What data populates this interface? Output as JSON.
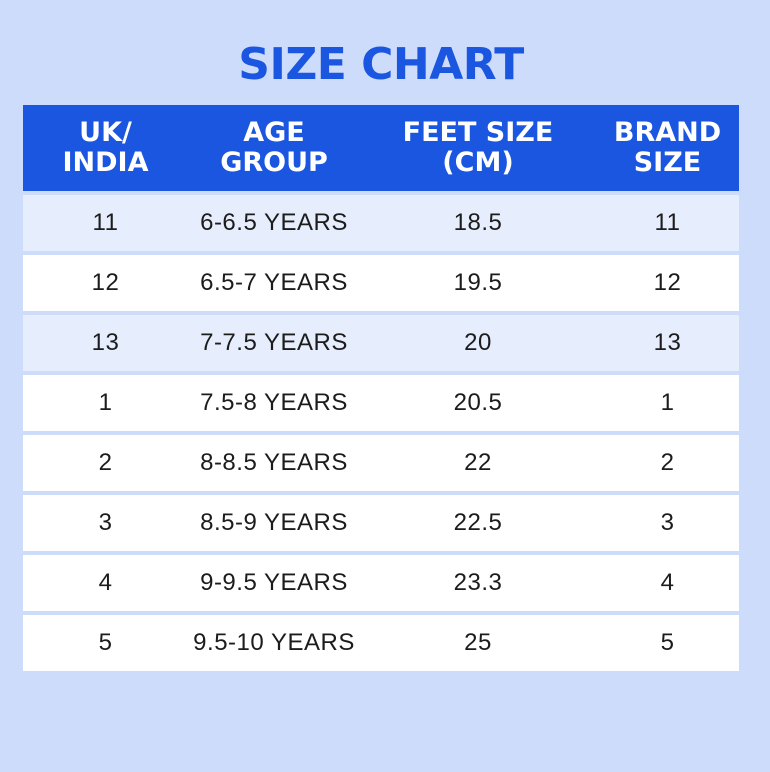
{
  "title": "SIZE CHART",
  "colors": {
    "background": "#cddcfb",
    "accent": "#1a56e0",
    "row_alt": "#e6edfd",
    "row": "#ffffff"
  },
  "table": {
    "headers": [
      "UK/\nINDIA",
      "AGE\nGROUP",
      "FEET SIZE\n(CM)",
      "BRAND\nSIZE"
    ],
    "rows": [
      [
        "11",
        "6-6.5 YEARS",
        "18.5",
        "11"
      ],
      [
        "12",
        "6.5-7 YEARS",
        "19.5",
        "12"
      ],
      [
        "13",
        "7-7.5 YEARS",
        "20",
        "13"
      ],
      [
        "1",
        "7.5-8 YEARS",
        "20.5",
        "1"
      ],
      [
        "2",
        "8-8.5 YEARS",
        "22",
        "2"
      ],
      [
        "3",
        "8.5-9 YEARS",
        "22.5",
        "3"
      ],
      [
        "4",
        "9-9.5 YEARS",
        "23.3",
        "4"
      ],
      [
        "5",
        "9.5-10 YEARS",
        "25",
        "5"
      ]
    ]
  }
}
